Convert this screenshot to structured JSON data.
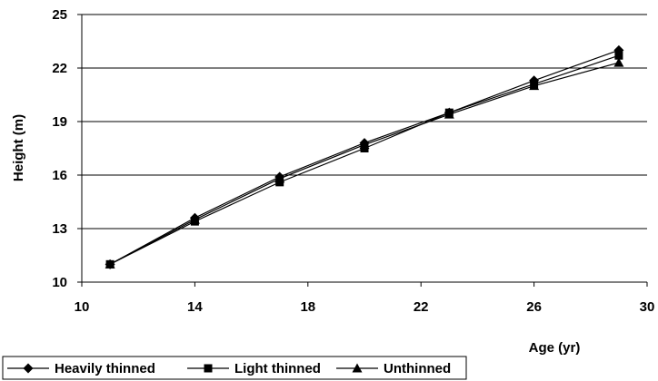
{
  "chart_data": {
    "type": "line",
    "xlabel": "Age (yr)",
    "ylabel": "Height (m)",
    "xlim": [
      10,
      30
    ],
    "ylim": [
      10,
      25
    ],
    "xticks": [
      10,
      14,
      18,
      22,
      26,
      30
    ],
    "yticks": [
      10,
      13,
      16,
      19,
      22,
      25
    ],
    "grid": "horizontal",
    "legend_position": "bottom-left",
    "series": [
      {
        "name": "Heavily thinned",
        "marker": "diamond",
        "x": [
          11,
          14,
          17,
          20,
          23,
          26,
          29
        ],
        "y": [
          11.0,
          13.6,
          15.9,
          17.8,
          19.5,
          21.3,
          23.0
        ]
      },
      {
        "name": "Light thinned",
        "marker": "square",
        "x": [
          11,
          14,
          17,
          20,
          23,
          26,
          29
        ],
        "y": [
          11.0,
          13.4,
          15.6,
          17.5,
          19.5,
          21.1,
          22.7
        ]
      },
      {
        "name": "Unthinned",
        "marker": "triangle",
        "x": [
          11,
          14,
          17,
          20,
          23,
          26,
          29
        ],
        "y": [
          11.0,
          13.5,
          15.8,
          17.7,
          19.4,
          21.0,
          22.3
        ]
      }
    ]
  }
}
